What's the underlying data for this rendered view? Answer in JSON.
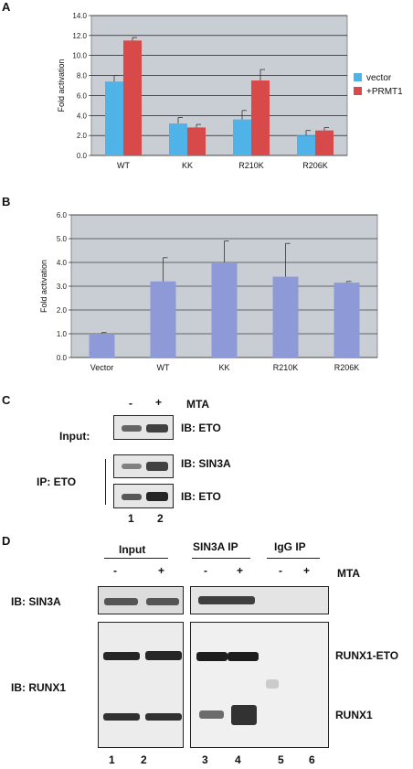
{
  "panels": {
    "a": "A",
    "b": "B",
    "c": "C",
    "d": "D"
  },
  "chart_data": [
    {
      "type": "bar",
      "ylabel": "Fold activation",
      "xlabel": "",
      "ylim": [
        0,
        14
      ],
      "yticks": [
        "0.0",
        "2.0",
        "4.0",
        "6.0",
        "8.0",
        "10.0",
        "12.0",
        "14.0"
      ],
      "categories": [
        "WT",
        "KK",
        "R210K",
        "R206K"
      ],
      "series": [
        {
          "name": "vector",
          "color": "#4fb3e8",
          "values": [
            7.4,
            3.2,
            3.6,
            2.0
          ],
          "errors": [
            0.6,
            0.6,
            0.9,
            0.5
          ]
        },
        {
          "name": "+PRMT1",
          "color": "#d84a4a",
          "values": [
            11.5,
            2.8,
            7.5,
            2.5
          ],
          "errors": [
            0.3,
            0.3,
            1.1,
            0.3
          ]
        }
      ],
      "legend": "right",
      "grid": true
    },
    {
      "type": "bar",
      "ylabel": "Fold activation",
      "xlabel": "",
      "ylim": [
        0,
        6
      ],
      "yticks": [
        "0.0",
        "1.0",
        "2.0",
        "3.0",
        "4.0",
        "5.0",
        "6.0"
      ],
      "categories": [
        "Vector",
        "WT",
        "KK",
        "R210K",
        "R206K"
      ],
      "series": [
        {
          "color": "#8e9ad8",
          "values": [
            1.0,
            3.2,
            4.0,
            3.4,
            3.15
          ],
          "errors": [
            0.05,
            1.0,
            0.9,
            1.4,
            0.05
          ]
        }
      ],
      "grid": true
    }
  ],
  "panel_c": {
    "lanes": [
      "-",
      "+"
    ],
    "treatment": "MTA",
    "input_label": "Input:",
    "ip_label": "IP: ETO",
    "blots": [
      "IB: ETO",
      "IB: SIN3A",
      "IB: ETO"
    ],
    "lane_numbers": [
      "1",
      "2"
    ]
  },
  "panel_d": {
    "groups": [
      "Input",
      "SIN3A IP",
      "IgG IP"
    ],
    "lanes": [
      "-",
      "+",
      "-",
      "+",
      "-",
      "+"
    ],
    "treatment": "MTA",
    "row_labels": [
      "IB: SIN3A",
      "IB: RUNX1"
    ],
    "band_labels": [
      "RUNX1-ETO",
      "RUNX1"
    ],
    "lane_numbers": [
      "1",
      "2",
      "3",
      "4",
      "5",
      "6"
    ]
  }
}
